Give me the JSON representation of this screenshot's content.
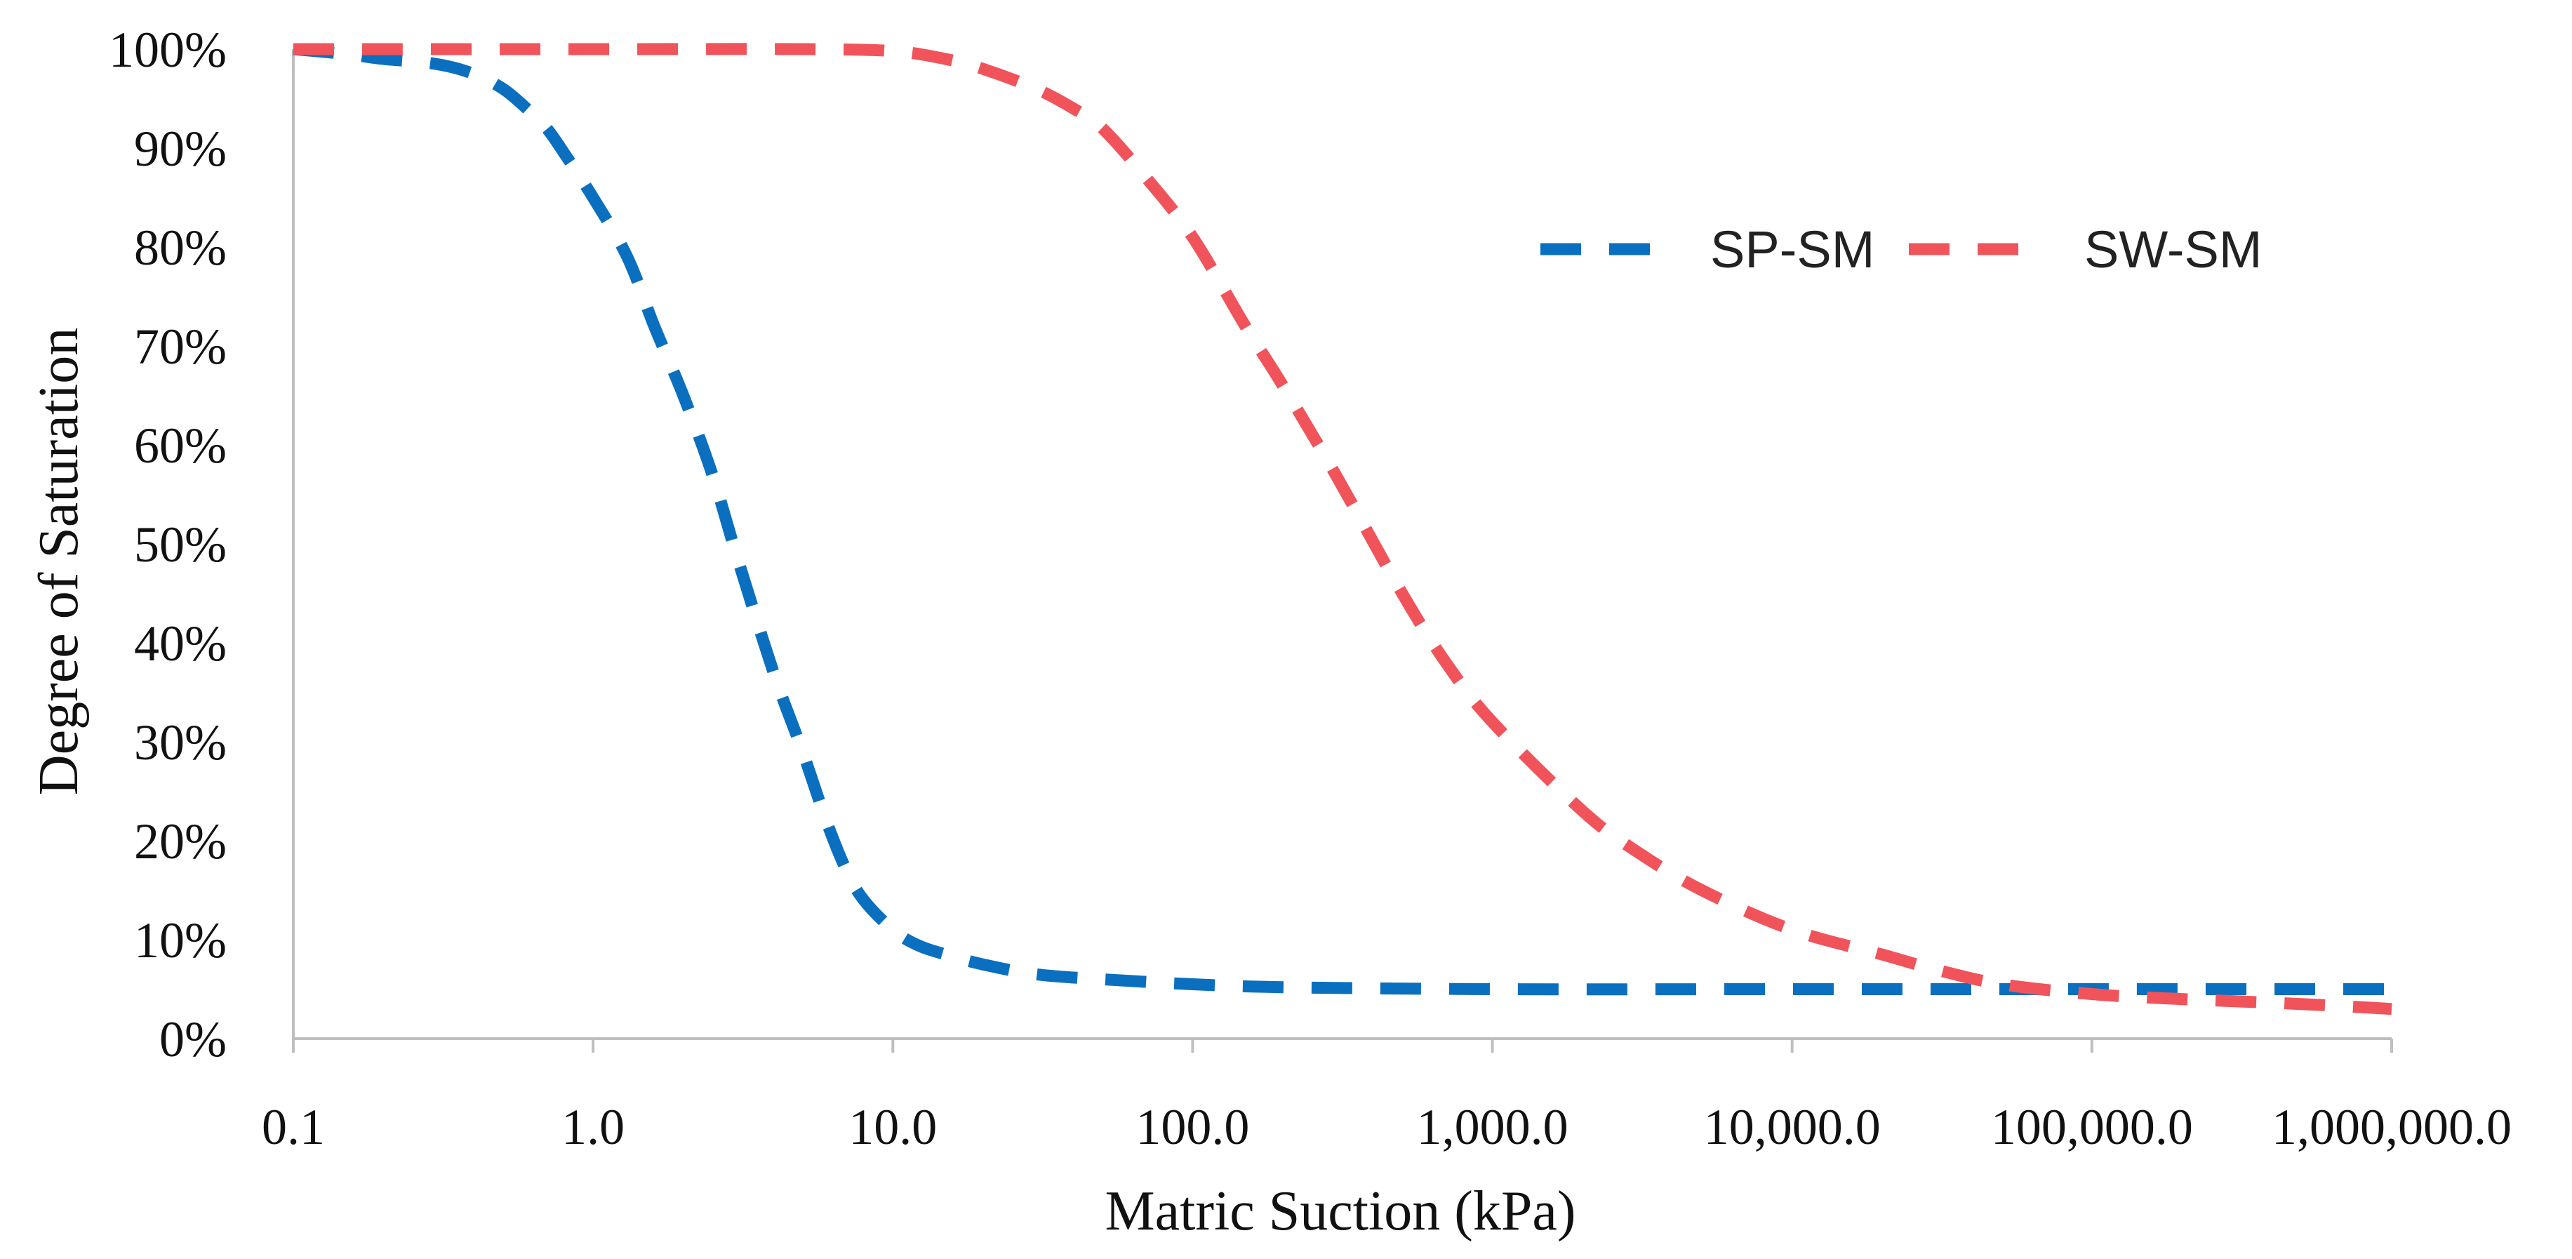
{
  "chart_data": {
    "type": "line",
    "title": "",
    "xlabel": "Matric Suction (kPa)",
    "ylabel": "Degree of Saturation",
    "xscale": "log",
    "xlim": [
      0.1,
      1000000
    ],
    "ylim": [
      0,
      100
    ],
    "x_ticks": [
      {
        "value": 0.1,
        "label": "0.1"
      },
      {
        "value": 1,
        "label": "1.0"
      },
      {
        "value": 10,
        "label": "10.0"
      },
      {
        "value": 100,
        "label": "100.0"
      },
      {
        "value": 1000,
        "label": "1,000.0"
      },
      {
        "value": 10000,
        "label": "10,000.0"
      },
      {
        "value": 100000,
        "label": "100,000.0"
      },
      {
        "value": 1000000,
        "label": "1,000,000.0"
      }
    ],
    "y_ticks": [
      {
        "value": 0,
        "label": "0%"
      },
      {
        "value": 10,
        "label": "10%"
      },
      {
        "value": 20,
        "label": "20%"
      },
      {
        "value": 30,
        "label": "30%"
      },
      {
        "value": 40,
        "label": "40%"
      },
      {
        "value": 50,
        "label": "50%"
      },
      {
        "value": 60,
        "label": "60%"
      },
      {
        "value": 70,
        "label": "70%"
      },
      {
        "value": 80,
        "label": "80%"
      },
      {
        "value": 90,
        "label": "90%"
      },
      {
        "value": 100,
        "label": "100%"
      }
    ],
    "grid": false,
    "legend_position": "top-right",
    "series": [
      {
        "name": "SP-SM",
        "color": "#0B6FBF",
        "style": "dashed",
        "x": [
          0.1,
          0.15,
          0.2,
          0.3,
          0.4,
          0.5,
          0.6,
          0.7,
          0.8,
          1.0,
          1.3,
          1.6,
          2.0,
          2.5,
          3.0,
          4.0,
          5.0,
          6.0,
          7.0,
          8.0,
          10.0,
          12,
          15,
          20,
          30,
          50,
          100,
          200,
          1000,
          10000,
          100000,
          1000000
        ],
        "y": [
          100,
          99.5,
          99,
          98.5,
          97.5,
          96,
          94,
          92,
          89.5,
          85,
          79,
          72,
          65,
          57,
          49,
          37,
          29,
          22,
          17,
          14,
          11,
          9.5,
          8.5,
          7.5,
          6.5,
          6,
          5.5,
          5.2,
          5,
          5,
          5,
          5
        ]
      },
      {
        "name": "SW-SM",
        "color": "#F0545A",
        "style": "dashed",
        "x": [
          0.1,
          1,
          5,
          10,
          15,
          20,
          30,
          40,
          50,
          70,
          100,
          150,
          200,
          300,
          500,
          700,
          1000,
          2000,
          3000,
          5000,
          10000,
          20000,
          30000,
          50000,
          100000,
          200000,
          500000,
          1000000
        ],
        "y": [
          100,
          100,
          100,
          99.8,
          99,
          98,
          96,
          94,
          92,
          87,
          81,
          72,
          66,
          57,
          45,
          38,
          32,
          23,
          19,
          15,
          11,
          8.5,
          7,
          5.5,
          4.5,
          4,
          3.5,
          3
        ]
      }
    ]
  }
}
